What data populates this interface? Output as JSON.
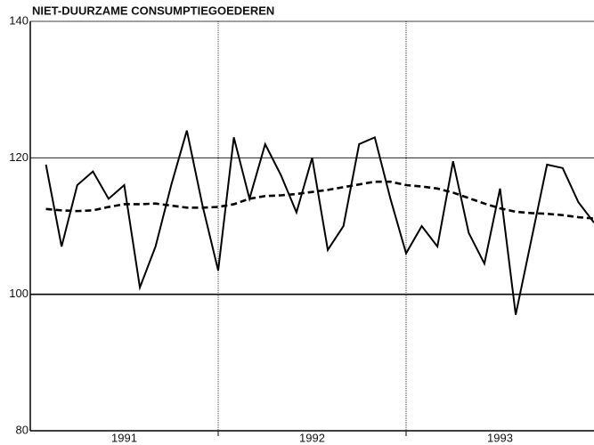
{
  "chart_data": {
    "type": "line",
    "title": "NIET-DUURZAME CONSUMPTIEGOEDEREN",
    "x": [
      1,
      2,
      3,
      4,
      5,
      6,
      7,
      8,
      9,
      10,
      11,
      12,
      13,
      14,
      15,
      16,
      17,
      18,
      19,
      20,
      21,
      22,
      23,
      24,
      25,
      26,
      27,
      28,
      29,
      30,
      31,
      32,
      33,
      34,
      35,
      36
    ],
    "series": [
      {
        "color": "#000000",
        "dashed": false,
        "values": [
          119,
          107,
          116,
          118,
          114,
          116,
          101,
          107,
          116,
          124,
          113,
          103.5,
          123,
          114,
          122,
          117.5,
          112,
          120,
          106.5,
          110,
          122,
          123,
          114,
          106,
          110,
          107,
          119.5,
          109,
          104.5,
          115.5,
          97,
          108,
          119,
          118.5,
          113.5,
          110.5
        ]
      },
      {
        "color": "#000000",
        "dashed": true,
        "values": [
          112.5,
          112.3,
          112.2,
          112.3,
          112.8,
          113.2,
          113.2,
          113.3,
          113.0,
          112.7,
          112.7,
          112.8,
          113.2,
          114.0,
          114.4,
          114.5,
          114.7,
          115.0,
          115.3,
          115.7,
          116.1,
          116.5,
          116.5,
          116.0,
          115.8,
          115.5,
          114.9,
          114.1,
          113.3,
          112.6,
          112.1,
          111.9,
          111.8,
          111.6,
          111.3,
          111.1
        ]
      }
    ],
    "xlim": [
      0,
      36
    ],
    "xticks": [
      {
        "value": 6,
        "label": "1991"
      },
      {
        "value": 18,
        "label": "1992"
      },
      {
        "value": 30,
        "label": "1993"
      }
    ],
    "xgrid": [
      12,
      24
    ],
    "ylim": [
      80,
      140
    ],
    "yticks": [
      80,
      100,
      120,
      140
    ],
    "grid": true
  }
}
